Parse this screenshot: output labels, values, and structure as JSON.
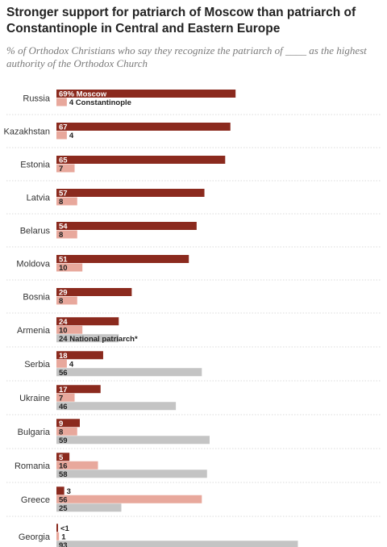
{
  "chart_data": {
    "type": "bar",
    "title": "Stronger support for patriarch of Moscow than patriarch of Constantinople in Central and Eastern Europe",
    "subtitle": "% of Orthodox Christians who say they recognize the patriarch of ____ as the highest authority of the Orthodox Church",
    "categories": [
      "Russia",
      "Kazakhstan",
      "Estonia",
      "Latvia",
      "Belarus",
      "Moldova",
      "Bosnia",
      "Armenia",
      "Serbia",
      "Ukraine",
      "Bulgaria",
      "Romania",
      "Greece",
      "Georgia"
    ],
    "series": [
      {
        "name": "Moscow",
        "color": "#8b2a1e",
        "values": [
          69,
          67,
          65,
          57,
          54,
          51,
          29,
          24,
          18,
          17,
          9,
          5,
          3,
          0.5
        ],
        "labels": [
          "69% Moscow",
          "67",
          "65",
          "57",
          "54",
          "51",
          "29",
          "24",
          "18",
          "17",
          "9",
          "5",
          "3",
          "<1"
        ]
      },
      {
        "name": "Constantinople",
        "color": "#e8a89c",
        "values": [
          4,
          4,
          7,
          8,
          8,
          10,
          8,
          10,
          4,
          7,
          8,
          16,
          56,
          1
        ],
        "labels": [
          "4 Constantinople",
          "4",
          "7",
          "8",
          "8",
          "10",
          "8",
          "10",
          "4",
          "7",
          "8",
          "16",
          "56",
          "1"
        ]
      },
      {
        "name": "National patriarch",
        "color": "#c4c4c4",
        "values": [
          null,
          null,
          null,
          null,
          null,
          null,
          null,
          24,
          56,
          46,
          59,
          58,
          25,
          93
        ],
        "labels": [
          null,
          null,
          null,
          null,
          null,
          null,
          null,
          "24 National patriarch*",
          "56",
          "46",
          "59",
          "58",
          "25",
          "93"
        ]
      }
    ],
    "xlim": [
      0,
      100
    ]
  }
}
